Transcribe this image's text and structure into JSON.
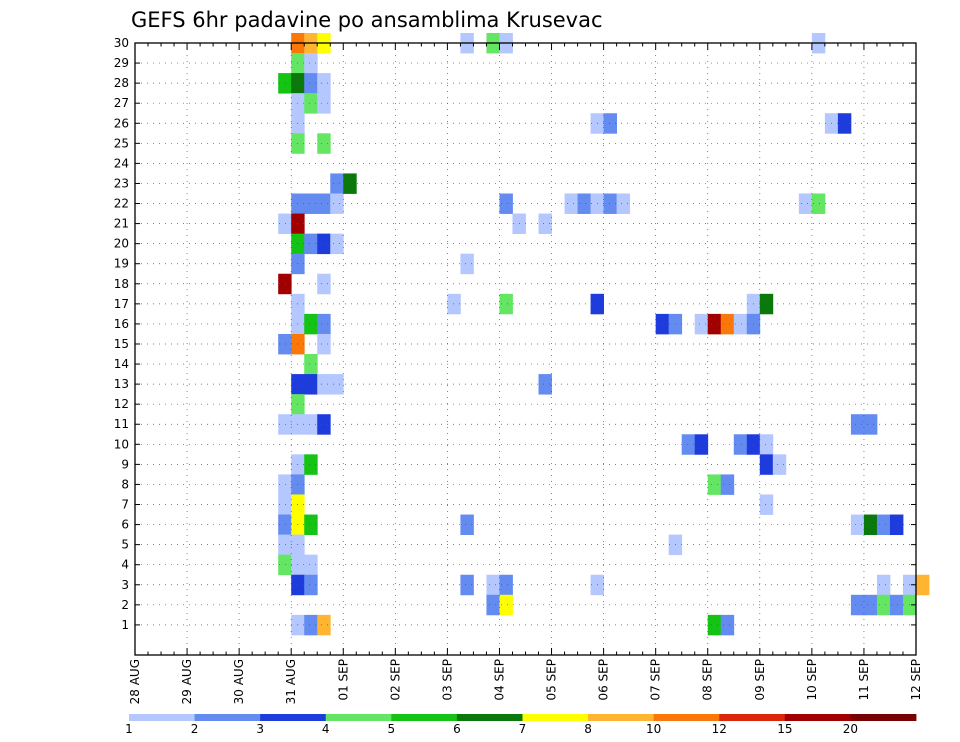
{
  "chart_data": {
    "type": "heatmap",
    "title": "GEFS 6hr padavine po ansamblima Krusevac",
    "xlabel": "",
    "ylabel": "",
    "x_ticks": [
      "28 AUG",
      "29 AUG",
      "30 AUG",
      "31 AUG",
      "01 SEP",
      "02 SEP",
      "03 SEP",
      "04 SEP",
      "05 SEP",
      "06 SEP",
      "07 SEP",
      "08 SEP",
      "09 SEP",
      "10 SEP",
      "11 SEP",
      "12 SEP"
    ],
    "y_ticks": [
      1,
      2,
      3,
      4,
      5,
      6,
      7,
      8,
      9,
      10,
      11,
      12,
      13,
      14,
      15,
      16,
      17,
      18,
      19,
      20,
      21,
      22,
      23,
      24,
      25,
      26,
      27,
      28,
      29,
      30
    ],
    "x_steps_per_day": 4,
    "y_range": [
      0,
      30
    ],
    "grid": true,
    "colorbar": {
      "labels": [
        "1",
        "2",
        "3",
        "4",
        "5",
        "6",
        "7",
        "8",
        "10",
        "12",
        "15",
        "20"
      ],
      "colors": [
        "#b4c8ff",
        "#648cf0",
        "#1e3cdc",
        "#64e664",
        "#14c314",
        "#0a780a",
        "#ffff00",
        "#ffb432",
        "#fa780a",
        "#dc280a",
        "#a00000",
        "#780000"
      ]
    },
    "cells": [
      [
        12,
        30,
        9
      ],
      [
        13,
        30,
        8
      ],
      [
        14,
        30,
        7
      ],
      [
        25,
        30,
        1
      ],
      [
        27,
        30,
        4
      ],
      [
        28,
        30,
        1
      ],
      [
        52,
        30,
        1
      ],
      [
        12,
        29,
        4
      ],
      [
        13,
        29,
        1
      ],
      [
        11,
        28,
        5
      ],
      [
        12,
        28,
        6
      ],
      [
        13,
        28,
        2
      ],
      [
        14,
        28,
        1
      ],
      [
        12,
        27,
        1
      ],
      [
        13,
        27,
        4
      ],
      [
        14,
        27,
        1
      ],
      [
        12,
        26,
        1
      ],
      [
        35,
        26,
        1
      ],
      [
        36,
        26,
        2
      ],
      [
        53,
        26,
        1
      ],
      [
        54,
        26,
        3
      ],
      [
        12,
        25,
        4
      ],
      [
        14,
        25,
        4
      ],
      [
        15,
        23,
        2
      ],
      [
        16,
        23,
        6
      ],
      [
        12,
        22,
        2
      ],
      [
        13,
        22,
        2
      ],
      [
        14,
        22,
        2
      ],
      [
        15,
        22,
        1
      ],
      [
        28,
        22,
        2
      ],
      [
        33,
        22,
        1
      ],
      [
        34,
        22,
        2
      ],
      [
        35,
        22,
        1
      ],
      [
        36,
        22,
        2
      ],
      [
        37,
        22,
        1
      ],
      [
        51,
        22,
        1
      ],
      [
        52,
        22,
        4
      ],
      [
        11,
        21,
        1
      ],
      [
        12,
        21,
        11
      ],
      [
        29,
        21,
        1
      ],
      [
        31,
        21,
        1
      ],
      [
        12,
        20,
        5
      ],
      [
        13,
        20,
        2
      ],
      [
        14,
        20,
        3
      ],
      [
        15,
        20,
        1
      ],
      [
        12,
        19,
        2
      ],
      [
        25,
        19,
        1
      ],
      [
        11,
        18,
        11
      ],
      [
        14,
        18,
        1
      ],
      [
        12,
        17,
        1
      ],
      [
        24,
        17,
        1
      ],
      [
        28,
        17,
        4
      ],
      [
        35,
        17,
        3
      ],
      [
        47,
        17,
        1
      ],
      [
        48,
        17,
        6
      ],
      [
        12,
        16,
        1
      ],
      [
        13,
        16,
        5
      ],
      [
        14,
        16,
        2
      ],
      [
        40,
        16,
        3
      ],
      [
        41,
        16,
        2
      ],
      [
        43,
        16,
        1
      ],
      [
        44,
        16,
        11
      ],
      [
        45,
        16,
        9
      ],
      [
        46,
        16,
        1
      ],
      [
        47,
        16,
        2
      ],
      [
        11,
        15,
        2
      ],
      [
        12,
        15,
        9
      ],
      [
        14,
        15,
        1
      ],
      [
        13,
        14,
        4
      ],
      [
        12,
        13,
        3
      ],
      [
        13,
        13,
        3
      ],
      [
        14,
        13,
        1
      ],
      [
        15,
        13,
        1
      ],
      [
        31,
        13,
        2
      ],
      [
        12,
        12,
        4
      ],
      [
        11,
        11,
        1
      ],
      [
        12,
        11,
        1
      ],
      [
        13,
        11,
        1
      ],
      [
        14,
        11,
        3
      ],
      [
        55,
        11,
        2
      ],
      [
        56,
        11,
        2
      ],
      [
        42,
        10,
        2
      ],
      [
        43,
        10,
        3
      ],
      [
        46,
        10,
        2
      ],
      [
        47,
        10,
        3
      ],
      [
        48,
        10,
        1
      ],
      [
        12,
        9,
        1
      ],
      [
        13,
        9,
        5
      ],
      [
        48,
        9,
        3
      ],
      [
        49,
        9,
        1
      ],
      [
        11,
        8,
        1
      ],
      [
        12,
        8,
        2
      ],
      [
        44,
        8,
        4
      ],
      [
        45,
        8,
        2
      ],
      [
        11,
        7,
        1
      ],
      [
        12,
        7,
        7
      ],
      [
        48,
        7,
        1
      ],
      [
        11,
        6,
        2
      ],
      [
        12,
        6,
        7
      ],
      [
        13,
        6,
        5
      ],
      [
        25,
        6,
        2
      ],
      [
        55,
        6,
        1
      ],
      [
        56,
        6,
        6
      ],
      [
        57,
        6,
        2
      ],
      [
        58,
        6,
        3
      ],
      [
        11,
        5,
        1
      ],
      [
        12,
        5,
        1
      ],
      [
        41,
        5,
        1
      ],
      [
        11,
        4,
        4
      ],
      [
        12,
        4,
        1
      ],
      [
        13,
        4,
        1
      ],
      [
        12,
        3,
        3
      ],
      [
        13,
        3,
        2
      ],
      [
        25,
        3,
        2
      ],
      [
        27,
        3,
        1
      ],
      [
        28,
        3,
        2
      ],
      [
        35,
        3,
        1
      ],
      [
        57,
        3,
        1
      ],
      [
        59,
        3,
        1
      ],
      [
        60,
        3,
        8
      ],
      [
        27,
        2,
        2
      ],
      [
        28,
        2,
        7
      ],
      [
        55,
        2,
        2
      ],
      [
        56,
        2,
        2
      ],
      [
        57,
        2,
        4
      ],
      [
        58,
        2,
        2
      ],
      [
        59,
        2,
        4
      ],
      [
        12,
        1,
        1
      ],
      [
        13,
        1,
        2
      ],
      [
        14,
        1,
        8
      ],
      [
        44,
        1,
        5
      ],
      [
        45,
        1,
        2
      ]
    ]
  }
}
